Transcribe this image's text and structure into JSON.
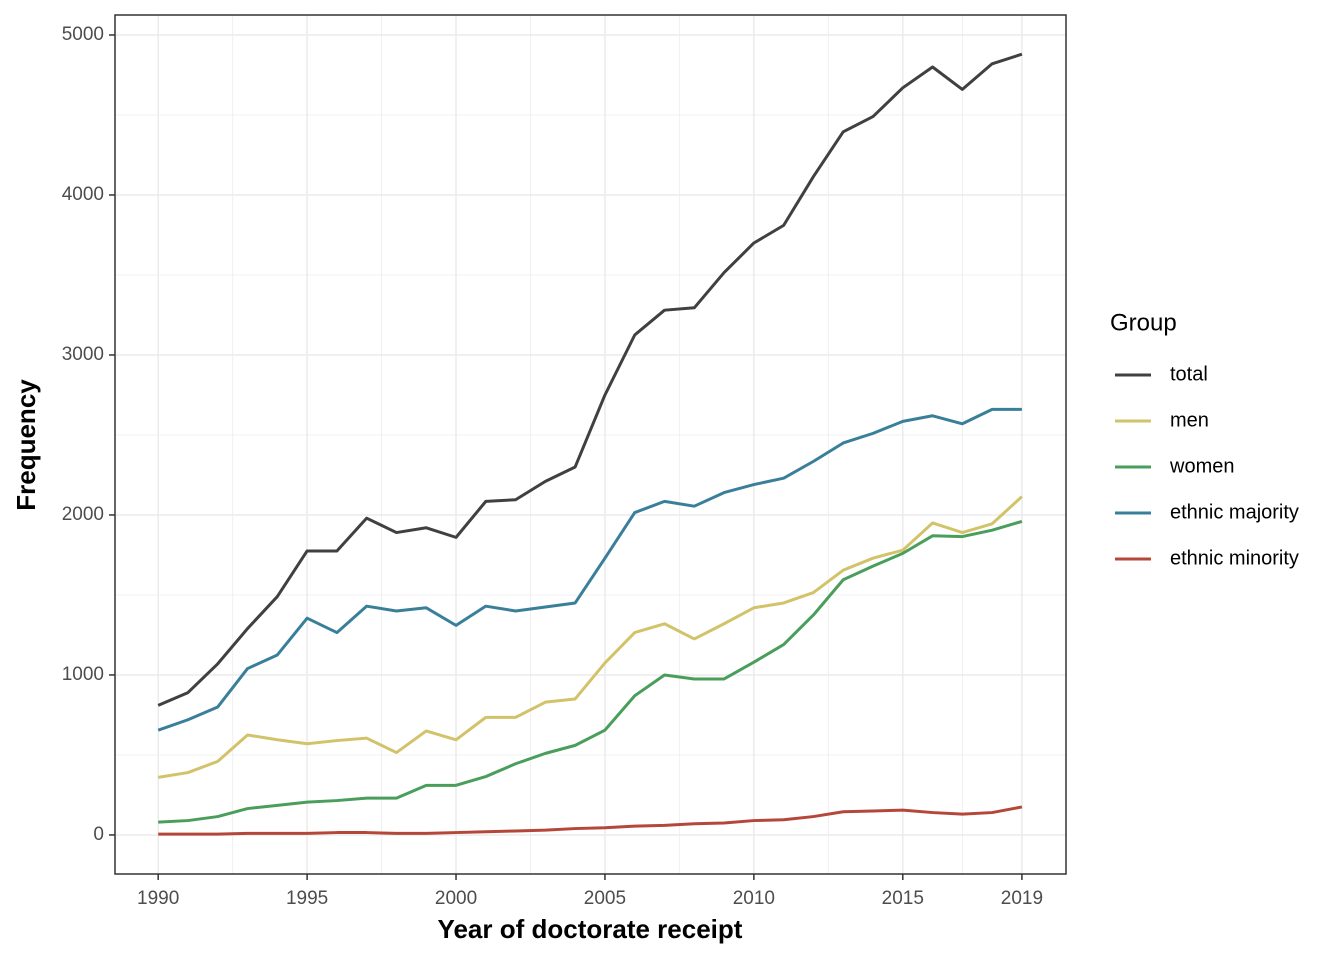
{
  "chart_data": {
    "type": "line",
    "x_label": "Year of doctorate receipt",
    "y_label": "Frequency",
    "legend_title": "Group",
    "legend_position": "right",
    "grid": true,
    "minor_grid": true,
    "x": [
      1990,
      1991,
      1992,
      1993,
      1994,
      1995,
      1996,
      1997,
      1998,
      1999,
      2000,
      2001,
      2002,
      2003,
      2004,
      2005,
      2006,
      2007,
      2008,
      2009,
      2010,
      2011,
      2012,
      2013,
      2014,
      2015,
      2016,
      2017,
      2018,
      2019
    ],
    "xlim": [
      1988.55,
      2020.48
    ],
    "xticks": [
      1990,
      1995,
      2000,
      2005,
      2010,
      2015,
      2019
    ],
    "ylim": [
      -244,
      5125
    ],
    "yticks": [
      0,
      1000,
      2000,
      3000,
      4000,
      5000
    ],
    "series": [
      {
        "name": "total",
        "color": "#404040",
        "values": [
          810,
          890,
          1070,
          1290,
          1490,
          1775,
          1775,
          1980,
          1890,
          1920,
          1860,
          2085,
          2095,
          2210,
          2300,
          2750,
          3125,
          3280,
          3295,
          3515,
          3700,
          3810,
          4115,
          4395,
          4490,
          4670,
          4800,
          4660,
          4820,
          4880
        ]
      },
      {
        "name": "men",
        "color": "#d2c36a",
        "values": [
          360,
          390,
          460,
          625,
          595,
          570,
          590,
          605,
          515,
          650,
          595,
          735,
          735,
          830,
          850,
          1075,
          1265,
          1320,
          1225,
          1320,
          1420,
          1450,
          1515,
          1655,
          1730,
          1780,
          1950,
          1890,
          1945,
          2115
        ]
      },
      {
        "name": "women",
        "color": "#4a9e5c",
        "values": [
          80,
          90,
          115,
          165,
          185,
          205,
          215,
          230,
          230,
          310,
          310,
          365,
          445,
          510,
          560,
          655,
          870,
          1000,
          975,
          975,
          1080,
          1190,
          1375,
          1595,
          1680,
          1760,
          1870,
          1865,
          1905,
          1960
        ]
      },
      {
        "name": "ethnic majority",
        "color": "#3a7f9a",
        "values": [
          655,
          720,
          800,
          1040,
          1125,
          1355,
          1265,
          1430,
          1400,
          1420,
          1310,
          1430,
          1400,
          1425,
          1450,
          1730,
          2015,
          2085,
          2055,
          2140,
          2190,
          2230,
          2335,
          2450,
          2510,
          2585,
          2620,
          2570,
          2660,
          2660
        ]
      },
      {
        "name": "ethnic minority",
        "color": "#b5473a",
        "values": [
          5,
          5,
          5,
          10,
          10,
          10,
          15,
          15,
          10,
          10,
          15,
          20,
          25,
          30,
          40,
          45,
          55,
          60,
          70,
          75,
          90,
          95,
          115,
          145,
          150,
          155,
          140,
          130,
          140,
          175
        ]
      }
    ]
  }
}
